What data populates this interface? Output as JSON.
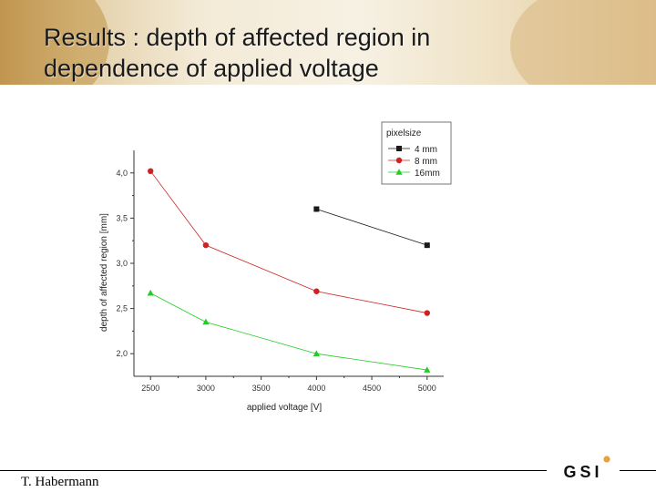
{
  "slide": {
    "title_line1": "Results : depth of affected region in",
    "title_line2": "dependence of applied voltage",
    "author": "T. Habermann",
    "logo_text": "GSI"
  },
  "chart_data": {
    "type": "line",
    "title": "",
    "xlabel": "applied voltage [V]",
    "ylabel": "depth of affected region [mm]",
    "xlim": [
      2350,
      5150
    ],
    "ylim": [
      1.75,
      4.25
    ],
    "xticks": [
      2500,
      3000,
      3500,
      4000,
      4500,
      5000
    ],
    "xtick_labels": [
      "2500",
      "3000",
      "3500",
      "4000",
      "4500",
      "5000"
    ],
    "yticks": [
      2.0,
      2.5,
      3.0,
      3.5,
      4.0
    ],
    "ytick_labels": [
      "2,0",
      "2,5",
      "3,0",
      "3,5",
      "4,0"
    ],
    "grid": false,
    "legend": {
      "title": "pixelsize",
      "placement": "top-right"
    },
    "series": [
      {
        "name": "4  mm",
        "marker": "square",
        "color": "#1a1a1a",
        "x": [
          4000,
          5000
        ],
        "y": [
          3.6,
          3.2
        ]
      },
      {
        "name": "8  mm",
        "marker": "circle",
        "color": "#cc2222",
        "x": [
          2500,
          3000,
          4000,
          5000
        ],
        "y": [
          4.02,
          3.2,
          2.69,
          2.45
        ]
      },
      {
        "name": "16mm",
        "marker": "triangle",
        "color": "#22cc22",
        "x": [
          2500,
          3000,
          4000,
          5000
        ],
        "y": [
          2.67,
          2.35,
          2.0,
          1.82
        ]
      }
    ]
  }
}
